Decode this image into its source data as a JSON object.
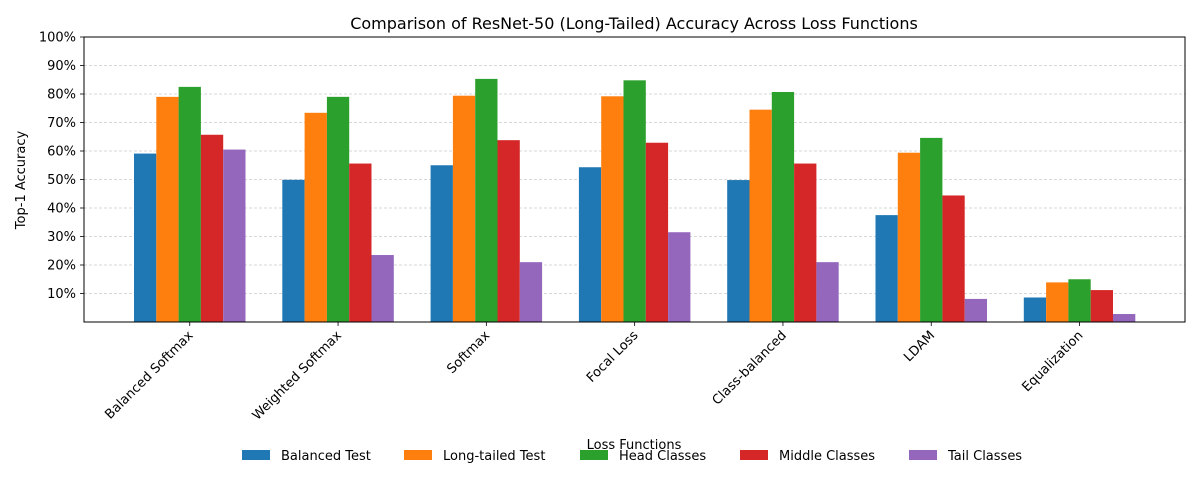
{
  "chart_data": {
    "type": "bar",
    "title": "Comparison of ResNet-50 (Long-Tailed) Accuracy Across Loss Functions",
    "xlabel": "Loss Functions",
    "ylabel": "Top-1 Accuracy",
    "ylim": [
      0,
      100
    ],
    "ytick_values": [
      10,
      20,
      30,
      40,
      50,
      60,
      70,
      80,
      90,
      100
    ],
    "ytick_labels": [
      "10%",
      "20%",
      "30%",
      "40%",
      "50%",
      "60%",
      "70%",
      "80%",
      "90%",
      "100%"
    ],
    "grid": true,
    "legend_position": "bottom-center",
    "categories": [
      "Balanced Softmax",
      "Weighted Softmax",
      "Softmax",
      "Focal Loss",
      "Class-balanced",
      "LDAM",
      "Equalization"
    ],
    "series": [
      {
        "name": "Balanced Test",
        "color": "#1f77b4",
        "values": [
          59.1,
          49.9,
          55.0,
          54.3,
          49.8,
          37.5,
          8.6
        ]
      },
      {
        "name": "Long-tailed Test",
        "color": "#ff7f0e",
        "values": [
          79.0,
          73.4,
          79.4,
          79.2,
          74.5,
          59.4,
          13.9
        ]
      },
      {
        "name": "Head Classes",
        "color": "#2ca02c",
        "values": [
          82.5,
          79.0,
          85.3,
          84.8,
          80.7,
          64.6,
          15.0
        ]
      },
      {
        "name": "Middle Classes",
        "color": "#d62728",
        "values": [
          65.7,
          55.6,
          63.8,
          62.9,
          55.6,
          44.4,
          11.2
        ]
      },
      {
        "name": "Tail Classes",
        "color": "#9467bd",
        "values": [
          60.5,
          23.5,
          21.0,
          31.5,
          21.0,
          8.1,
          2.8
        ]
      }
    ]
  }
}
